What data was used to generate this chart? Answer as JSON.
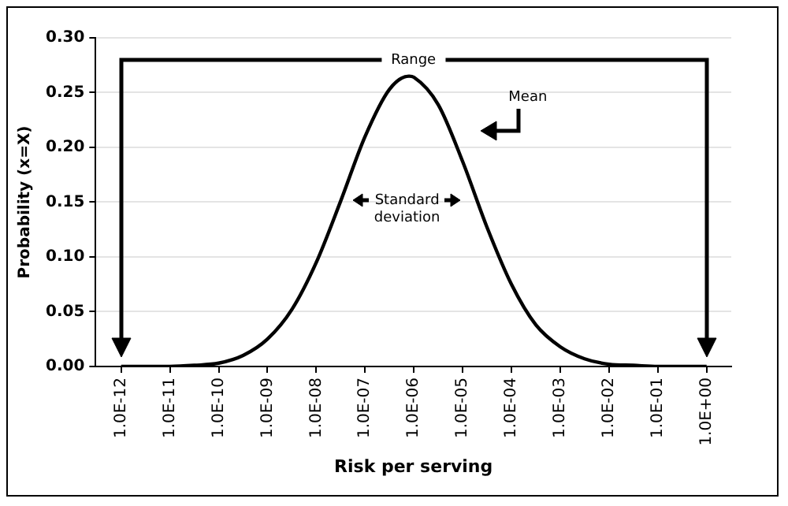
{
  "chart_data": {
    "type": "line",
    "xlabel": "Risk per serving",
    "ylabel": "Probability (x=X)",
    "x": [
      1e-12,
      3.16e-12,
      1e-11,
      3.16e-11,
      1e-10,
      3.16e-10,
      1e-09,
      3.16e-09,
      1e-08,
      3.16e-08,
      1e-07,
      3.16e-07,
      7.94e-07,
      1e-06,
      3.16e-06,
      1e-05,
      3.16e-05,
      0.0001,
      0.000316,
      0.001,
      0.00316,
      0.01,
      0.0316,
      0.1,
      0.316,
      1
    ],
    "series": [
      {
        "color": "#000000",
        "values": [
          0.0,
          0.0,
          0.0,
          0.001,
          0.003,
          0.01,
          0.025,
          0.052,
          0.095,
          0.151,
          0.21,
          0.253,
          0.265,
          0.264,
          0.239,
          0.187,
          0.127,
          0.075,
          0.038,
          0.018,
          0.007,
          0.002,
          0.001,
          0.0,
          0.0,
          0.0
        ]
      }
    ],
    "log": "x",
    "xlim": [
      3.2e-13,
      3.2
    ],
    "xticks": [
      {
        "value": 1e-12,
        "label": "1.0E-12"
      },
      {
        "value": 1e-11,
        "label": "1.0E-11"
      },
      {
        "value": 1e-10,
        "label": "1.0E-10"
      },
      {
        "value": 1e-09,
        "label": "1.0E-09"
      },
      {
        "value": 1e-08,
        "label": "1.0E-08"
      },
      {
        "value": 1e-07,
        "label": "1.0E-07"
      },
      {
        "value": 1e-06,
        "label": "1.0E-06"
      },
      {
        "value": 1e-05,
        "label": "1.0E-05"
      },
      {
        "value": 0.0001,
        "label": "1.0E-04"
      },
      {
        "value": 0.001,
        "label": "1.0E-03"
      },
      {
        "value": 0.01,
        "label": "1.0E-02"
      },
      {
        "value": 0.1,
        "label": "1.0E-01"
      },
      {
        "value": 1,
        "label": "1.0E+00"
      }
    ],
    "ylim": [
      0,
      0.3
    ],
    "yticks": [
      {
        "value": 0,
        "label": "0.00"
      },
      {
        "value": 0.05,
        "label": "0.05"
      },
      {
        "value": 0.1,
        "label": "0.10"
      },
      {
        "value": 0.15,
        "label": "0.15"
      },
      {
        "value": 0.2,
        "label": "0.20"
      },
      {
        "value": 0.25,
        "label": "0.25"
      },
      {
        "value": 0.3,
        "label": "0.30"
      }
    ],
    "grid": "y",
    "legend": false,
    "marker": "none",
    "line_style": "solid",
    "annotations": [
      "Range",
      "Mean",
      "Standard deviation"
    ]
  }
}
